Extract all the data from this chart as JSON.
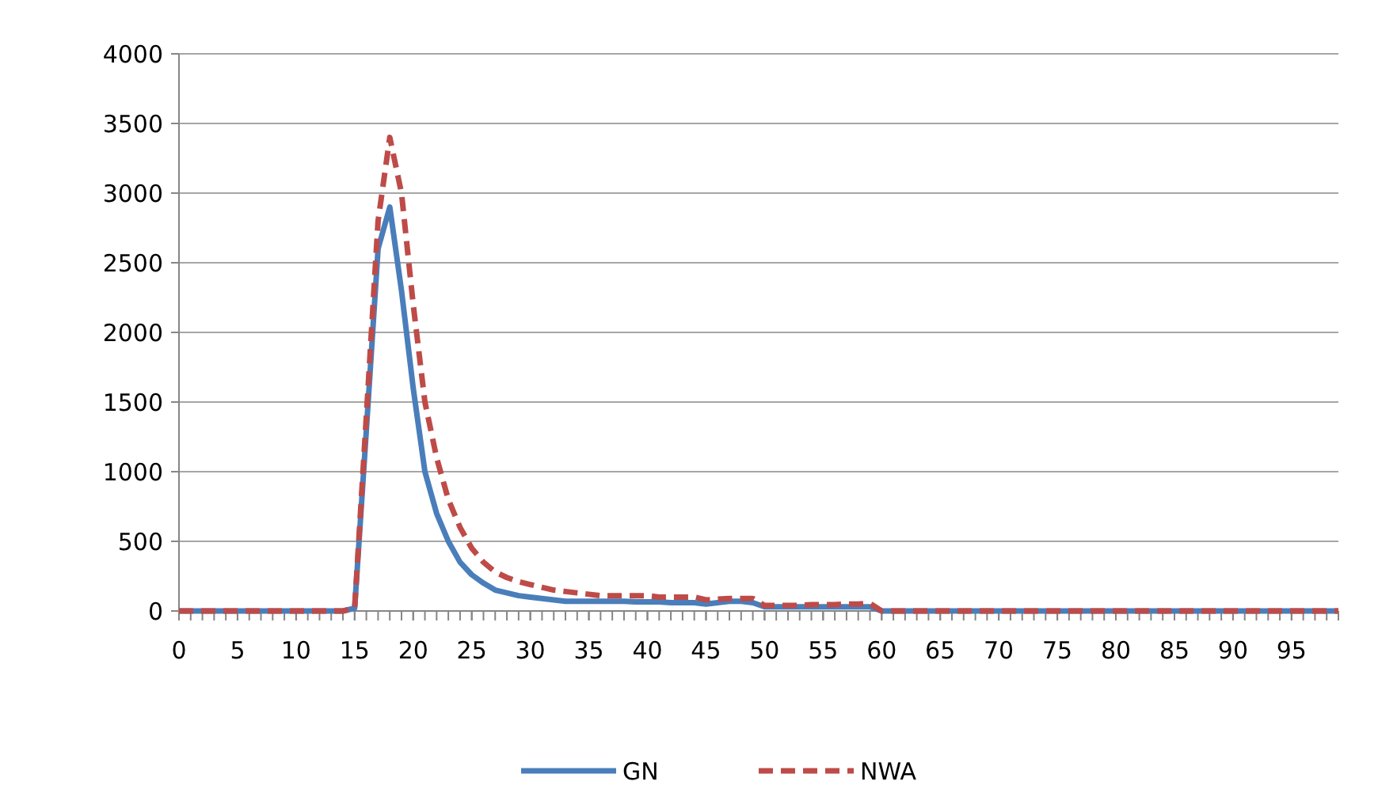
{
  "chart_data": {
    "type": "line",
    "x": [
      0,
      1,
      2,
      3,
      4,
      5,
      6,
      7,
      8,
      9,
      10,
      11,
      12,
      13,
      14,
      15,
      16,
      17,
      18,
      19,
      20,
      21,
      22,
      23,
      24,
      25,
      26,
      27,
      28,
      29,
      30,
      31,
      32,
      33,
      34,
      35,
      36,
      37,
      38,
      39,
      40,
      41,
      42,
      43,
      44,
      45,
      46,
      47,
      48,
      49,
      50,
      51,
      52,
      53,
      54,
      55,
      56,
      57,
      58,
      59,
      60,
      61,
      62,
      63,
      64,
      65,
      66,
      67,
      68,
      69,
      70,
      71,
      72,
      73,
      74,
      75,
      76,
      77,
      78,
      79,
      80,
      81,
      82,
      83,
      84,
      85,
      86,
      87,
      88,
      89,
      90,
      91,
      92,
      93,
      94,
      95,
      96,
      97,
      98,
      99
    ],
    "series": [
      {
        "name": "GN",
        "color": "#4a7ebb",
        "line_style": "solid",
        "values": [
          0,
          0,
          0,
          0,
          0,
          0,
          0,
          0,
          0,
          0,
          0,
          0,
          0,
          0,
          0,
          20,
          1300,
          2600,
          2900,
          2300,
          1600,
          1000,
          700,
          500,
          350,
          260,
          200,
          150,
          130,
          110,
          100,
          90,
          80,
          70,
          70,
          70,
          70,
          70,
          70,
          65,
          65,
          65,
          60,
          60,
          60,
          50,
          60,
          70,
          70,
          60,
          30,
          30,
          30,
          30,
          30,
          30,
          30,
          30,
          30,
          30,
          0,
          0,
          0,
          0,
          0,
          0,
          0,
          0,
          0,
          0,
          0,
          0,
          0,
          0,
          0,
          0,
          0,
          0,
          0,
          0,
          0,
          0,
          0,
          0,
          0,
          0,
          0,
          0,
          0,
          0,
          0,
          0,
          0,
          0,
          0,
          0,
          0,
          0,
          0,
          0
        ]
      },
      {
        "name": "NWA",
        "color": "#be4b48",
        "line_style": "dashed",
        "values": [
          0,
          0,
          0,
          0,
          0,
          0,
          0,
          0,
          0,
          0,
          0,
          0,
          0,
          0,
          0,
          20,
          1400,
          2800,
          3400,
          3000,
          2200,
          1500,
          1100,
          800,
          600,
          450,
          350,
          280,
          240,
          210,
          190,
          170,
          150,
          140,
          130,
          120,
          110,
          110,
          110,
          110,
          110,
          100,
          100,
          100,
          100,
          80,
          85,
          90,
          90,
          90,
          40,
          40,
          40,
          40,
          45,
          45,
          45,
          50,
          50,
          55,
          0,
          0,
          0,
          0,
          0,
          0,
          0,
          0,
          0,
          0,
          0,
          0,
          0,
          0,
          0,
          0,
          0,
          0,
          0,
          0,
          0,
          0,
          0,
          0,
          0,
          0,
          0,
          0,
          0,
          0,
          0,
          0,
          0,
          0,
          0,
          0,
          0,
          0,
          0,
          0
        ]
      }
    ],
    "xlim": [
      0,
      99
    ],
    "xticks": [
      0,
      5,
      10,
      15,
      20,
      25,
      30,
      35,
      40,
      45,
      50,
      55,
      60,
      65,
      70,
      75,
      80,
      85,
      90,
      95
    ],
    "ylim": [
      0,
      4000
    ],
    "yticks": [
      0,
      500,
      1000,
      1500,
      2000,
      2500,
      3000,
      3500,
      4000
    ],
    "grid": "y",
    "legend": "bottom",
    "marker": "none"
  }
}
